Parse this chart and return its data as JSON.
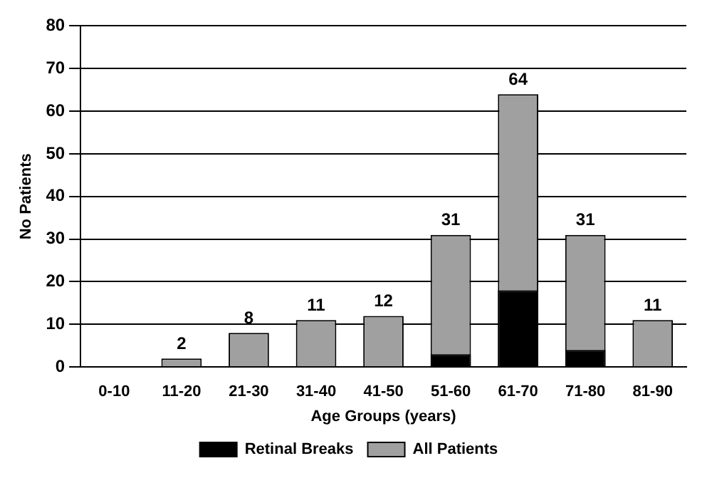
{
  "chart_data": {
    "type": "bar",
    "xlabel": "Age Groups (years)",
    "ylabel": "No Patients",
    "categories": [
      "0-10",
      "11-20",
      "21-30",
      "31-40",
      "41-50",
      "51-60",
      "61-70",
      "71-80",
      "81-90"
    ],
    "series": [
      {
        "name": "Retinal Breaks",
        "color": "#000000",
        "values": [
          0,
          0,
          0,
          0,
          0,
          3,
          18,
          4,
          0
        ]
      },
      {
        "name": "All Patients",
        "color": "#a0a0a0",
        "values": [
          0,
          2,
          8,
          11,
          12,
          31,
          64,
          31,
          11
        ],
        "value_labels": [
          null,
          "2",
          "8",
          "11",
          "12",
          "31",
          "64",
          "31",
          "11"
        ]
      }
    ],
    "ylim": [
      0,
      80
    ],
    "yticks": [
      0,
      10,
      20,
      30,
      40,
      50,
      60,
      70,
      80
    ],
    "grid": "y",
    "legend": "bottom"
  }
}
